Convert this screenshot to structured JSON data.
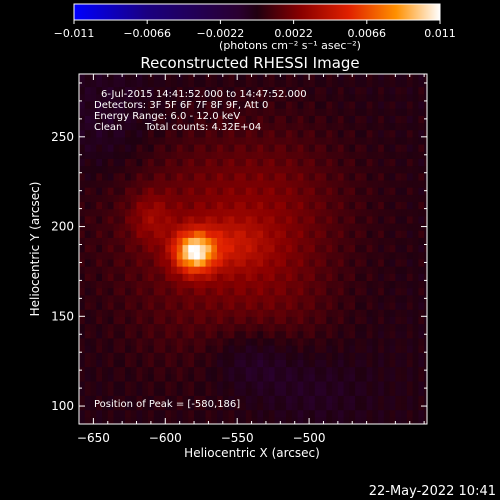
{
  "chart_data": {
    "type": "heatmap",
    "title": "Reconstructed RHESSI Image",
    "xlabel": "Heliocentric X (arcsec)",
    "ylabel": "Heliocentric Y (arcsec)",
    "x_range": [
      -660,
      -418
    ],
    "y_range": [
      90,
      285
    ],
    "x_ticks": [
      -650,
      -600,
      -550,
      -500
    ],
    "x_tick_labels": [
      "−650",
      "−600",
      "−550",
      "−500"
    ],
    "y_ticks": [
      100,
      150,
      200,
      250
    ],
    "y_tick_labels": [
      "100",
      "150",
      "200",
      "250"
    ],
    "colorbar": {
      "range": [
        -0.011,
        0.011
      ],
      "ticks": [
        -0.011,
        -0.0066,
        -0.0022,
        0.0022,
        0.0066,
        0.011
      ],
      "tick_labels": [
        "−0.011",
        "−0.0066",
        "−0.0022",
        "0.0022",
        "0.0066",
        "0.011"
      ],
      "units_label": "(photons cm⁻² s⁻¹ asec⁻²)"
    },
    "annotations": {
      "time": "6-Jul-2015 14:41:52.000 to 14:47:52.000",
      "detectors": "Detectors: 3F 5F 6F 7F 8F 9F, Att 0",
      "energy": "Energy Range: 6.0 - 12.0 keV",
      "clean": "Clean",
      "counts": "Total counts: 4.32E+04",
      "peak_text": "Position of Peak = [-580,186]"
    },
    "peak": {
      "x": -580,
      "y": 186,
      "value": 0.011
    },
    "components": [
      {
        "x": -580,
        "y": 186,
        "sx": 10,
        "sy": 8,
        "amp": 0.0085
      },
      {
        "x": -555,
        "y": 190,
        "sx": 18,
        "sy": 10,
        "amp": 0.0022
      },
      {
        "x": -610,
        "y": 205,
        "sx": 10,
        "sy": 10,
        "amp": 0.0018
      },
      {
        "x": -560,
        "y": 215,
        "sx": 60,
        "sy": 30,
        "amp": 0.0016
      },
      {
        "x": -570,
        "y": 165,
        "sx": 45,
        "sy": 35,
        "amp": 0.0013
      },
      {
        "x": -520,
        "y": 170,
        "sx": 30,
        "sy": 55,
        "amp": 0.001
      },
      {
        "x": -540,
        "y": 128,
        "sx": 22,
        "sy": 14,
        "amp": -0.0014
      },
      {
        "x": -505,
        "y": 110,
        "sx": 30,
        "sy": 18,
        "amp": -0.001
      },
      {
        "x": -640,
        "y": 255,
        "sx": 25,
        "sy": 25,
        "amp": -0.0008
      }
    ]
  },
  "timestamp": "22-May-2022 10:41"
}
